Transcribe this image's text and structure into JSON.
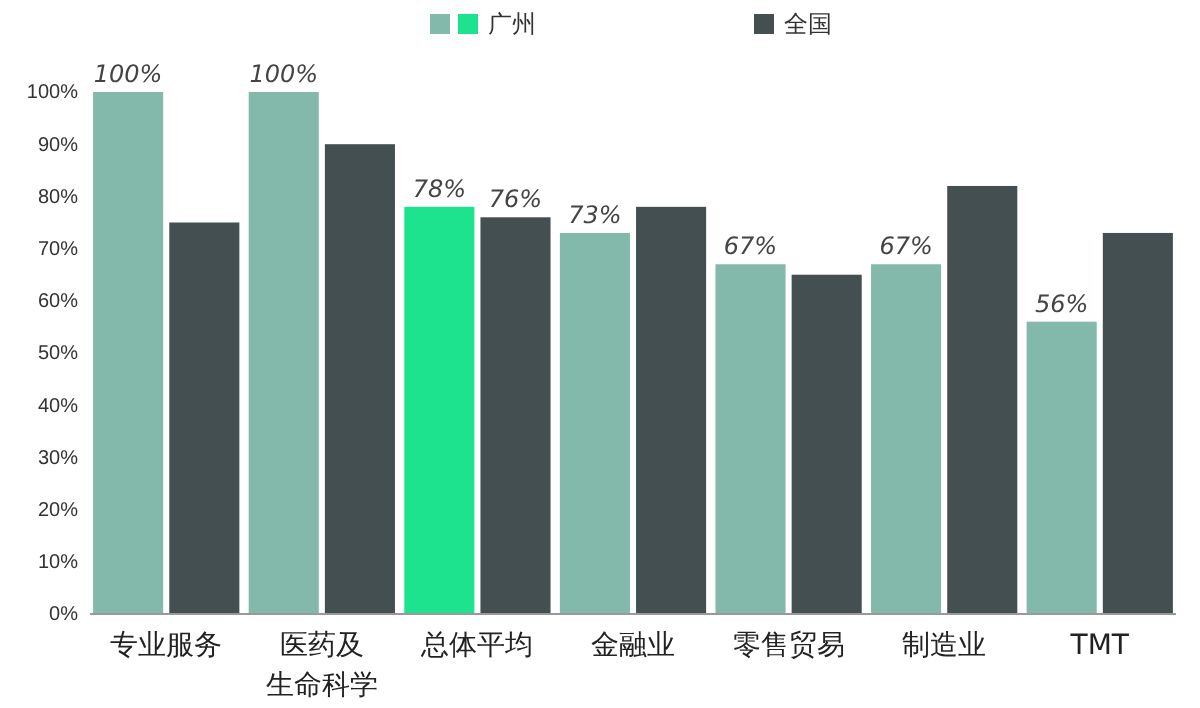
{
  "chart_data": {
    "type": "bar",
    "categories": [
      "专业服务",
      "医药及生命科学",
      "总体平均",
      "金融业",
      "零售贸易",
      "制造业",
      "TMT"
    ],
    "series": [
      {
        "name": "广州",
        "color": "#82b9aa",
        "colors": [
          "#82b9aa",
          "#82b9aa",
          "#1de28e",
          "#82b9aa",
          "#82b9aa",
          "#82b9aa",
          "#82b9aa"
        ],
        "values": [
          100,
          100,
          78,
          73,
          67,
          67,
          56
        ],
        "value_labels": [
          "100%",
          "100%",
          "78%",
          "73%",
          "67%",
          "67%",
          "56%"
        ]
      },
      {
        "name": "全国",
        "color": "#444f52",
        "values": [
          75,
          90,
          76,
          78,
          65,
          82,
          73
        ],
        "value_labels": [
          null,
          null,
          "76%",
          null,
          null,
          null,
          null
        ]
      }
    ],
    "ylim": [
      0,
      100
    ],
    "yticks": [
      {
        "value": 0,
        "label": "0%"
      },
      {
        "value": 10,
        "label": "10%"
      },
      {
        "value": 20,
        "label": "20%"
      },
      {
        "value": 30,
        "label": "30%"
      },
      {
        "value": 40,
        "label": "40%"
      },
      {
        "value": 50,
        "label": "50%"
      },
      {
        "value": 60,
        "label": "60%"
      },
      {
        "value": 70,
        "label": "70%"
      },
      {
        "value": 80,
        "label": "80%"
      },
      {
        "value": 90,
        "label": "90%"
      },
      {
        "value": 100,
        "label": "100%"
      }
    ],
    "grid": false,
    "legend": "top"
  }
}
